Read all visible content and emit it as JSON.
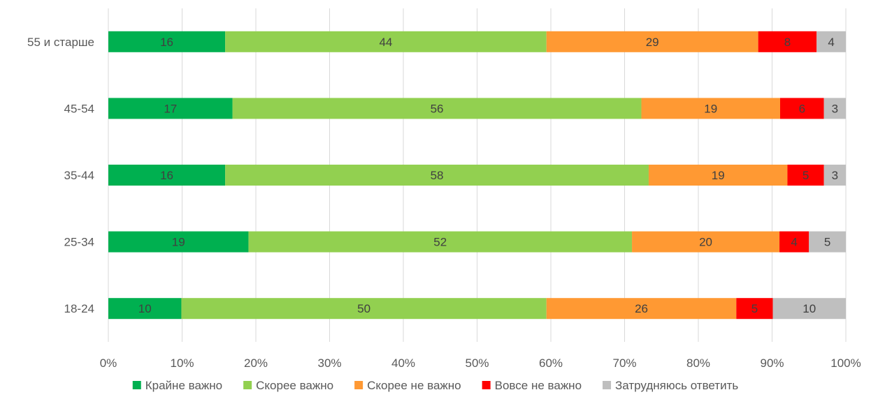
{
  "chart_data": {
    "type": "bar",
    "orientation": "horizontal",
    "stacked": "percent",
    "title": "",
    "xlabel": "",
    "ylabel": "",
    "xlim": [
      0,
      100
    ],
    "x_ticks": [
      "0%",
      "10%",
      "20%",
      "30%",
      "40%",
      "50%",
      "60%",
      "70%",
      "80%",
      "90%",
      "100%"
    ],
    "grid": "vertical",
    "legend_position": "bottom",
    "categories": [
      "55 и старше",
      "45-54",
      "35-44",
      "25-34",
      "18-24"
    ],
    "series": [
      {
        "name": "Крайне важно",
        "color": "#00b050",
        "values": [
          16,
          17,
          16,
          19,
          10
        ]
      },
      {
        "name": "Скорее важно",
        "color": "#92d050",
        "values": [
          44,
          56,
          58,
          52,
          50
        ]
      },
      {
        "name": "Скорее не важно",
        "color": "#ff9933",
        "values": [
          29,
          19,
          19,
          20,
          26
        ]
      },
      {
        "name": "Вовсе не важно",
        "color": "#ff0000",
        "values": [
          8,
          6,
          5,
          4,
          5
        ]
      },
      {
        "name": "Затрудняюсь ответить",
        "color": "#bfbfbf",
        "values": [
          4,
          3,
          3,
          5,
          10
        ]
      }
    ]
  }
}
